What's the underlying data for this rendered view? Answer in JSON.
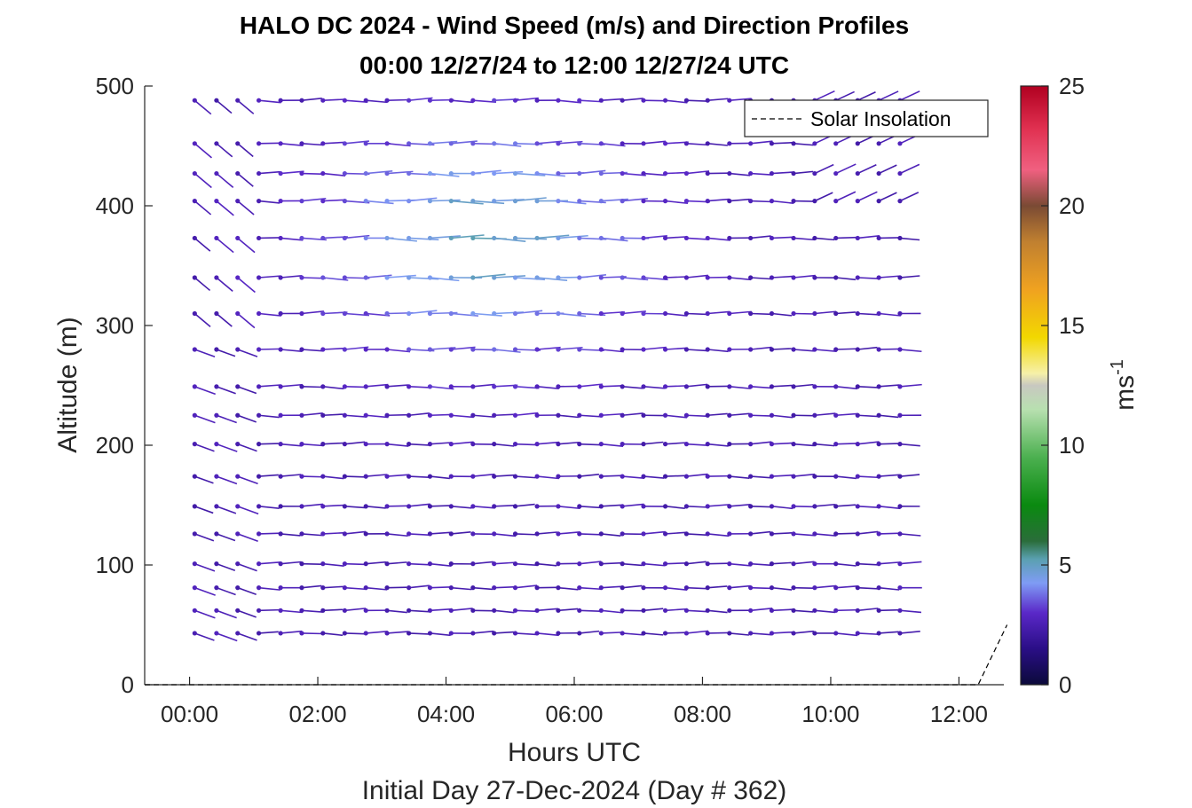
{
  "chart_data": {
    "type": "quiver",
    "title_line1": "HALO DC 2024 - Wind Speed (m/s) and Direction Profiles",
    "title_line2": "00:00 12/27/24 to 12:00 12/27/24  UTC",
    "xlabel": "Hours UTC",
    "xlabel2": "Initial Day 27-Dec-2024 (Day # 362)",
    "ylabel": "Altitude (m)",
    "xlim": [
      -0.7,
      12.7
    ],
    "ylim": [
      0,
      500
    ],
    "x_ticks": [
      "00:00",
      "02:00",
      "04:00",
      "06:00",
      "08:00",
      "10:00",
      "12:00"
    ],
    "y_ticks": [
      "0",
      "100",
      "200",
      "300",
      "400",
      "500"
    ],
    "colorbar": {
      "label": "ms",
      "label_exponent": "-1",
      "range": [
        0,
        25
      ],
      "ticks": [
        "0",
        "5",
        "10",
        "15",
        "20",
        "25"
      ]
    },
    "legend": {
      "entries": [
        "Solar Insolation"
      ],
      "placement": "top-right"
    },
    "grid": false,
    "time_hours": [
      0.08,
      0.42,
      0.75,
      1.08,
      1.42,
      1.75,
      2.08,
      2.42,
      2.75,
      3.08,
      3.42,
      3.75,
      4.08,
      4.42,
      4.75,
      5.08,
      5.42,
      5.75,
      6.08,
      6.42,
      6.75,
      7.08,
      7.42,
      7.75,
      8.08,
      8.42,
      8.75,
      9.08,
      9.42,
      9.75,
      10.08,
      10.42,
      10.75,
      11.08
    ],
    "altitudes_m": [
      43,
      62,
      81,
      101,
      126,
      149,
      174,
      201,
      225,
      249,
      280,
      310,
      340,
      373,
      404,
      427,
      452,
      488
    ],
    "speed_profile": {
      "description_free": true,
      "typical_ms": 2.5,
      "peak_ms": 5.0,
      "peak_time_hours": 4.5,
      "peak_altitude_m": 372
    },
    "direction_profile": {
      "early_deg": 290,
      "main_deg": 270,
      "late_deg": 265
    },
    "solar_insolation": {
      "x": [
        -0.7,
        12.3,
        12.75
      ],
      "y": [
        0,
        0,
        50
      ]
    }
  }
}
